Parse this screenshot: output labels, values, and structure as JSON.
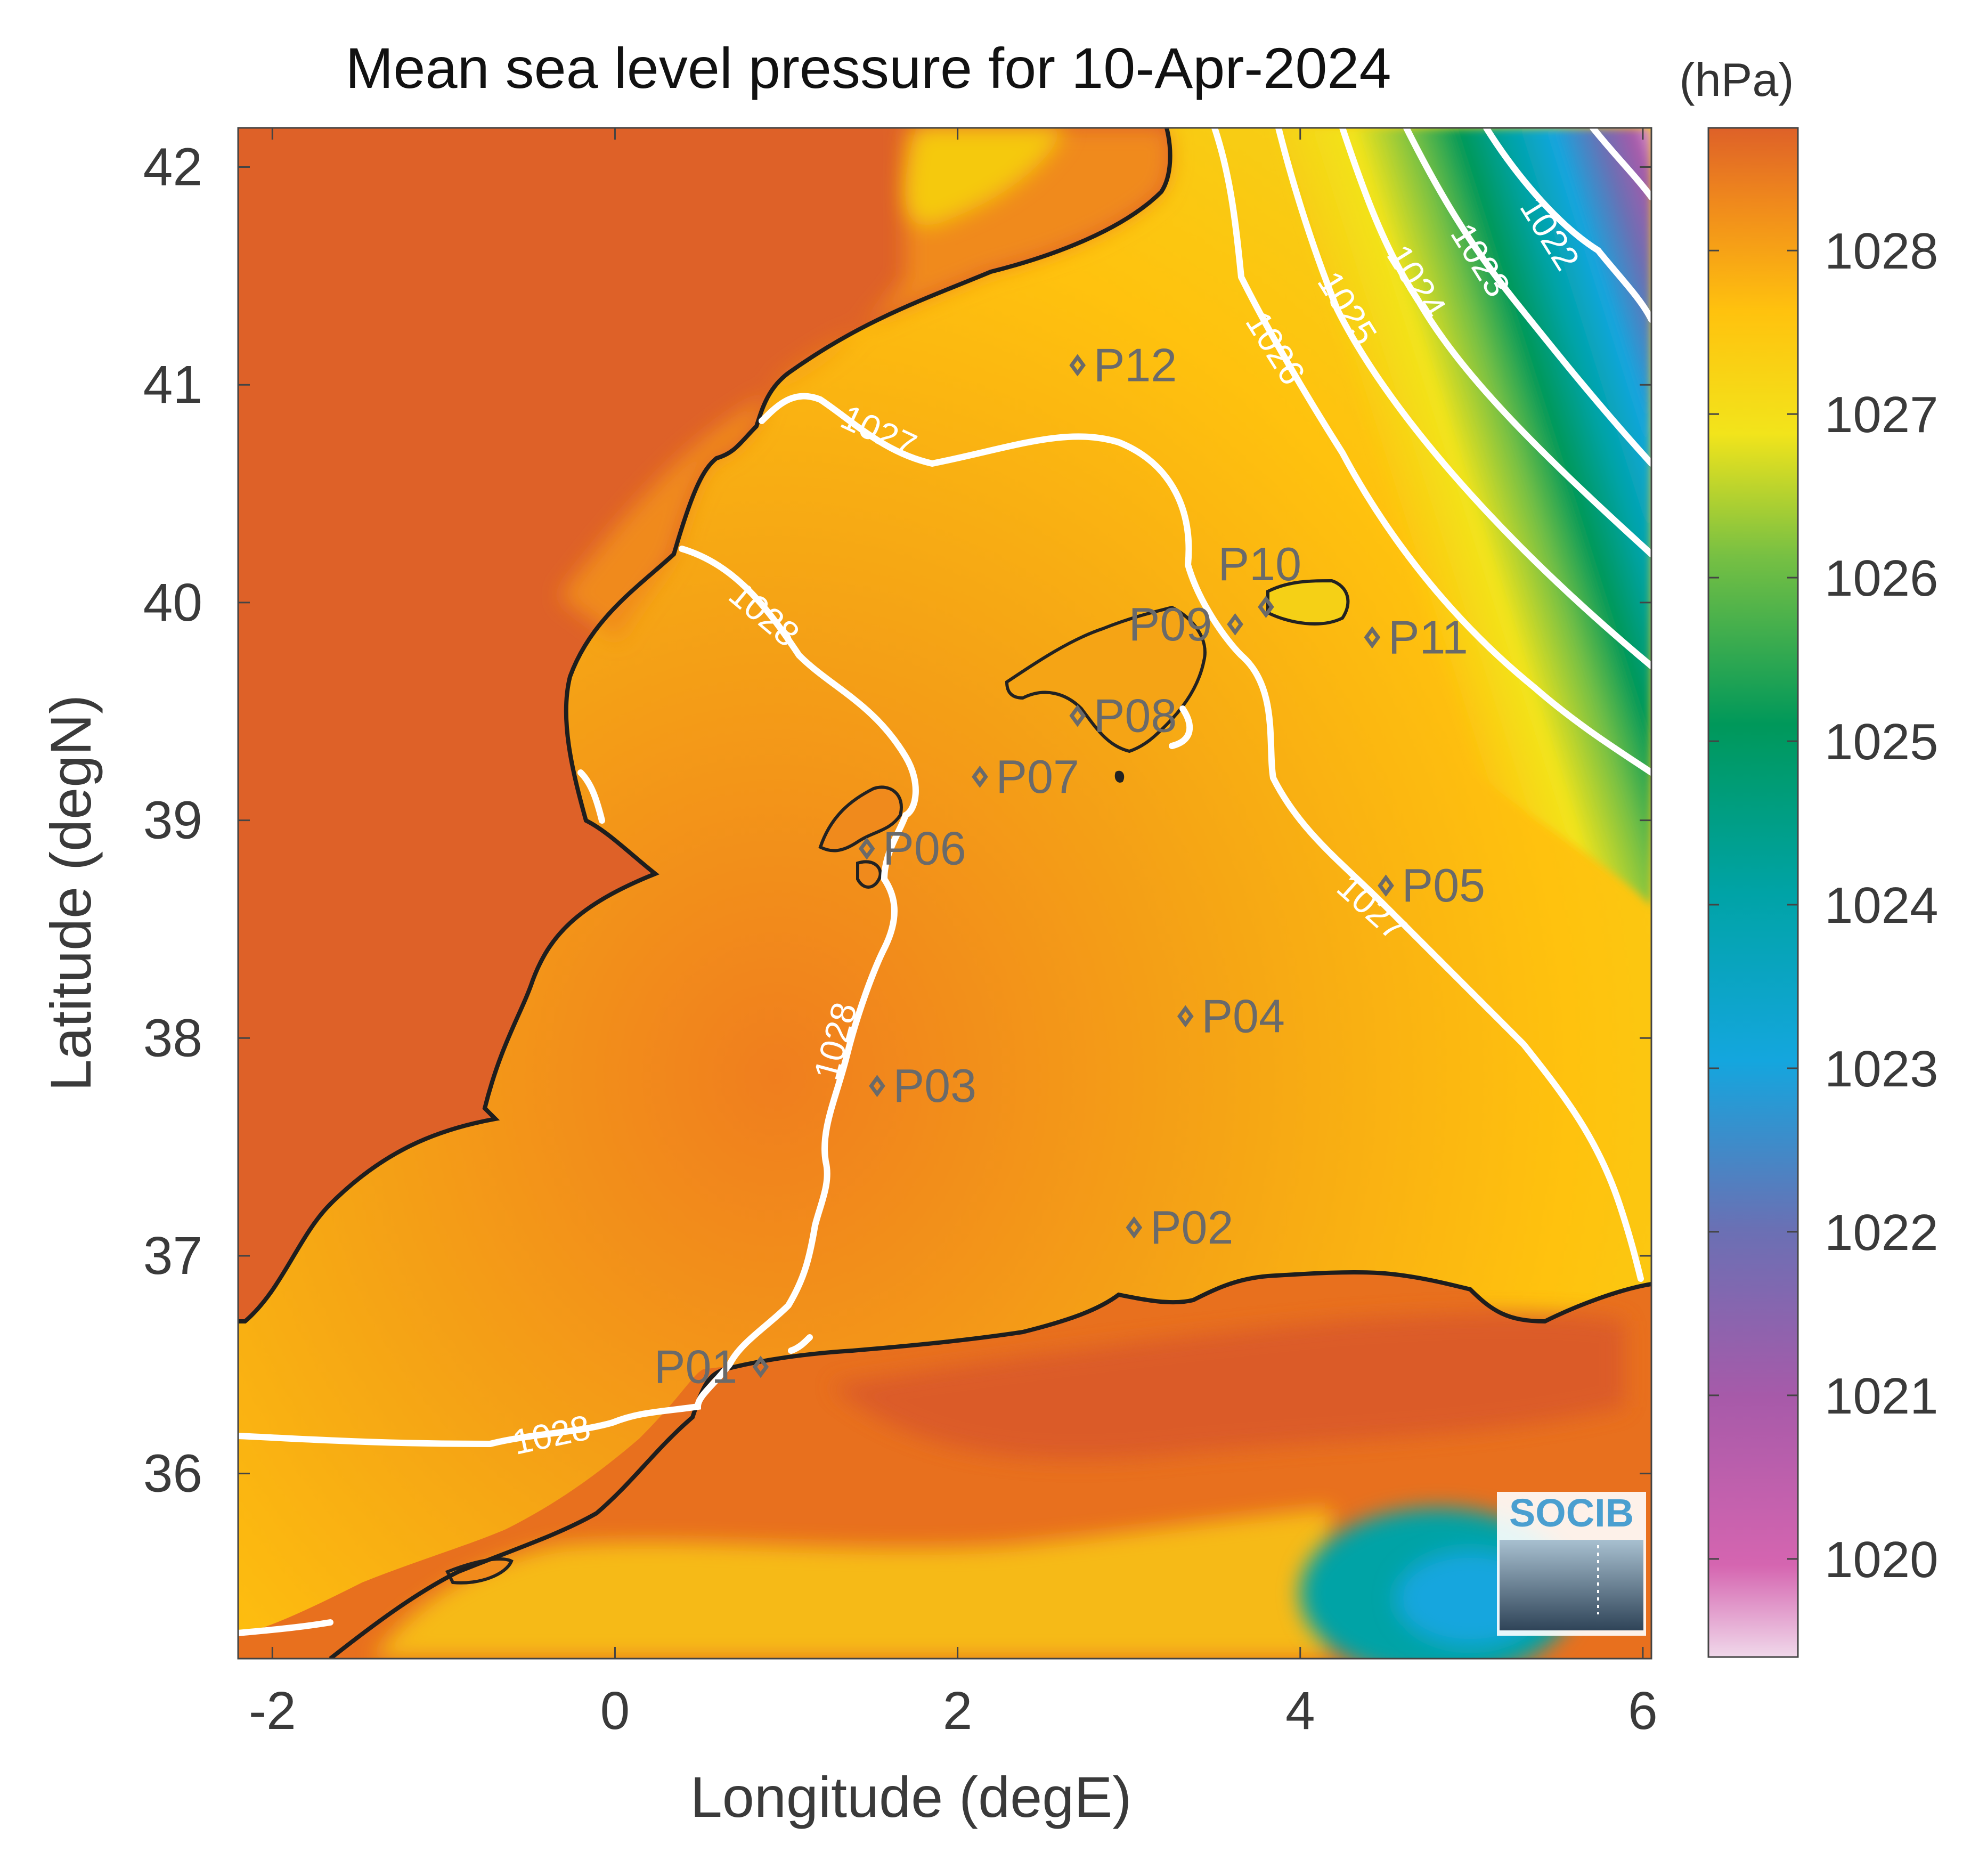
{
  "map": {
    "title": "Mean sea level pressure for 10-Apr-2024",
    "xlabel": "Longitude (degE)",
    "ylabel": "Latitude (degN)",
    "x_range": [
      -2.2,
      6.05
    ],
    "y_range": [
      35.15,
      42.18
    ],
    "x_ticks": [
      -2,
      0,
      2,
      4,
      6
    ],
    "y_ticks": [
      36,
      37,
      38,
      39,
      40,
      41,
      42
    ],
    "colorbar": {
      "unit_label": "(hPa)",
      "range": [
        1019.4,
        1028.75
      ],
      "ticks": [
        1020,
        1021,
        1022,
        1023,
        1024,
        1025,
        1026,
        1027,
        1028
      ],
      "colors": [
        "#e8c6e0",
        "#d565b0",
        "#9d5aa8",
        "#5d74b4",
        "#14a6de",
        "#00a0a0",
        "#00975a",
        "#6abf3c",
        "#f2e41b",
        "#ffc20e",
        "#f08a1c",
        "#de6128"
      ]
    },
    "contour_labels": [
      "1022",
      "1023",
      "1024",
      "1025",
      "1026",
      "1027",
      "1027",
      "1028",
      "1028",
      "1028"
    ],
    "stations": [
      {
        "name": "P01",
        "lon": 0.85,
        "lat": 36.49
      },
      {
        "name": "P02",
        "lon": 3.03,
        "lat": 37.13
      },
      {
        "name": "P03",
        "lon": 1.53,
        "lat": 37.78
      },
      {
        "name": "P04",
        "lon": 3.33,
        "lat": 38.1
      },
      {
        "name": "P05",
        "lon": 4.5,
        "lat": 38.7
      },
      {
        "name": "P06",
        "lon": 1.47,
        "lat": 38.87
      },
      {
        "name": "P07",
        "lon": 2.13,
        "lat": 39.2
      },
      {
        "name": "P08",
        "lon": 2.7,
        "lat": 39.48
      },
      {
        "name": "P09",
        "lon": 3.62,
        "lat": 39.9
      },
      {
        "name": "P10",
        "lon": 3.8,
        "lat": 39.98
      },
      {
        "name": "P11",
        "lon": 4.42,
        "lat": 39.84
      },
      {
        "name": "P12",
        "lon": 2.7,
        "lat": 41.09
      }
    ],
    "logo_text": "SOCIB"
  }
}
